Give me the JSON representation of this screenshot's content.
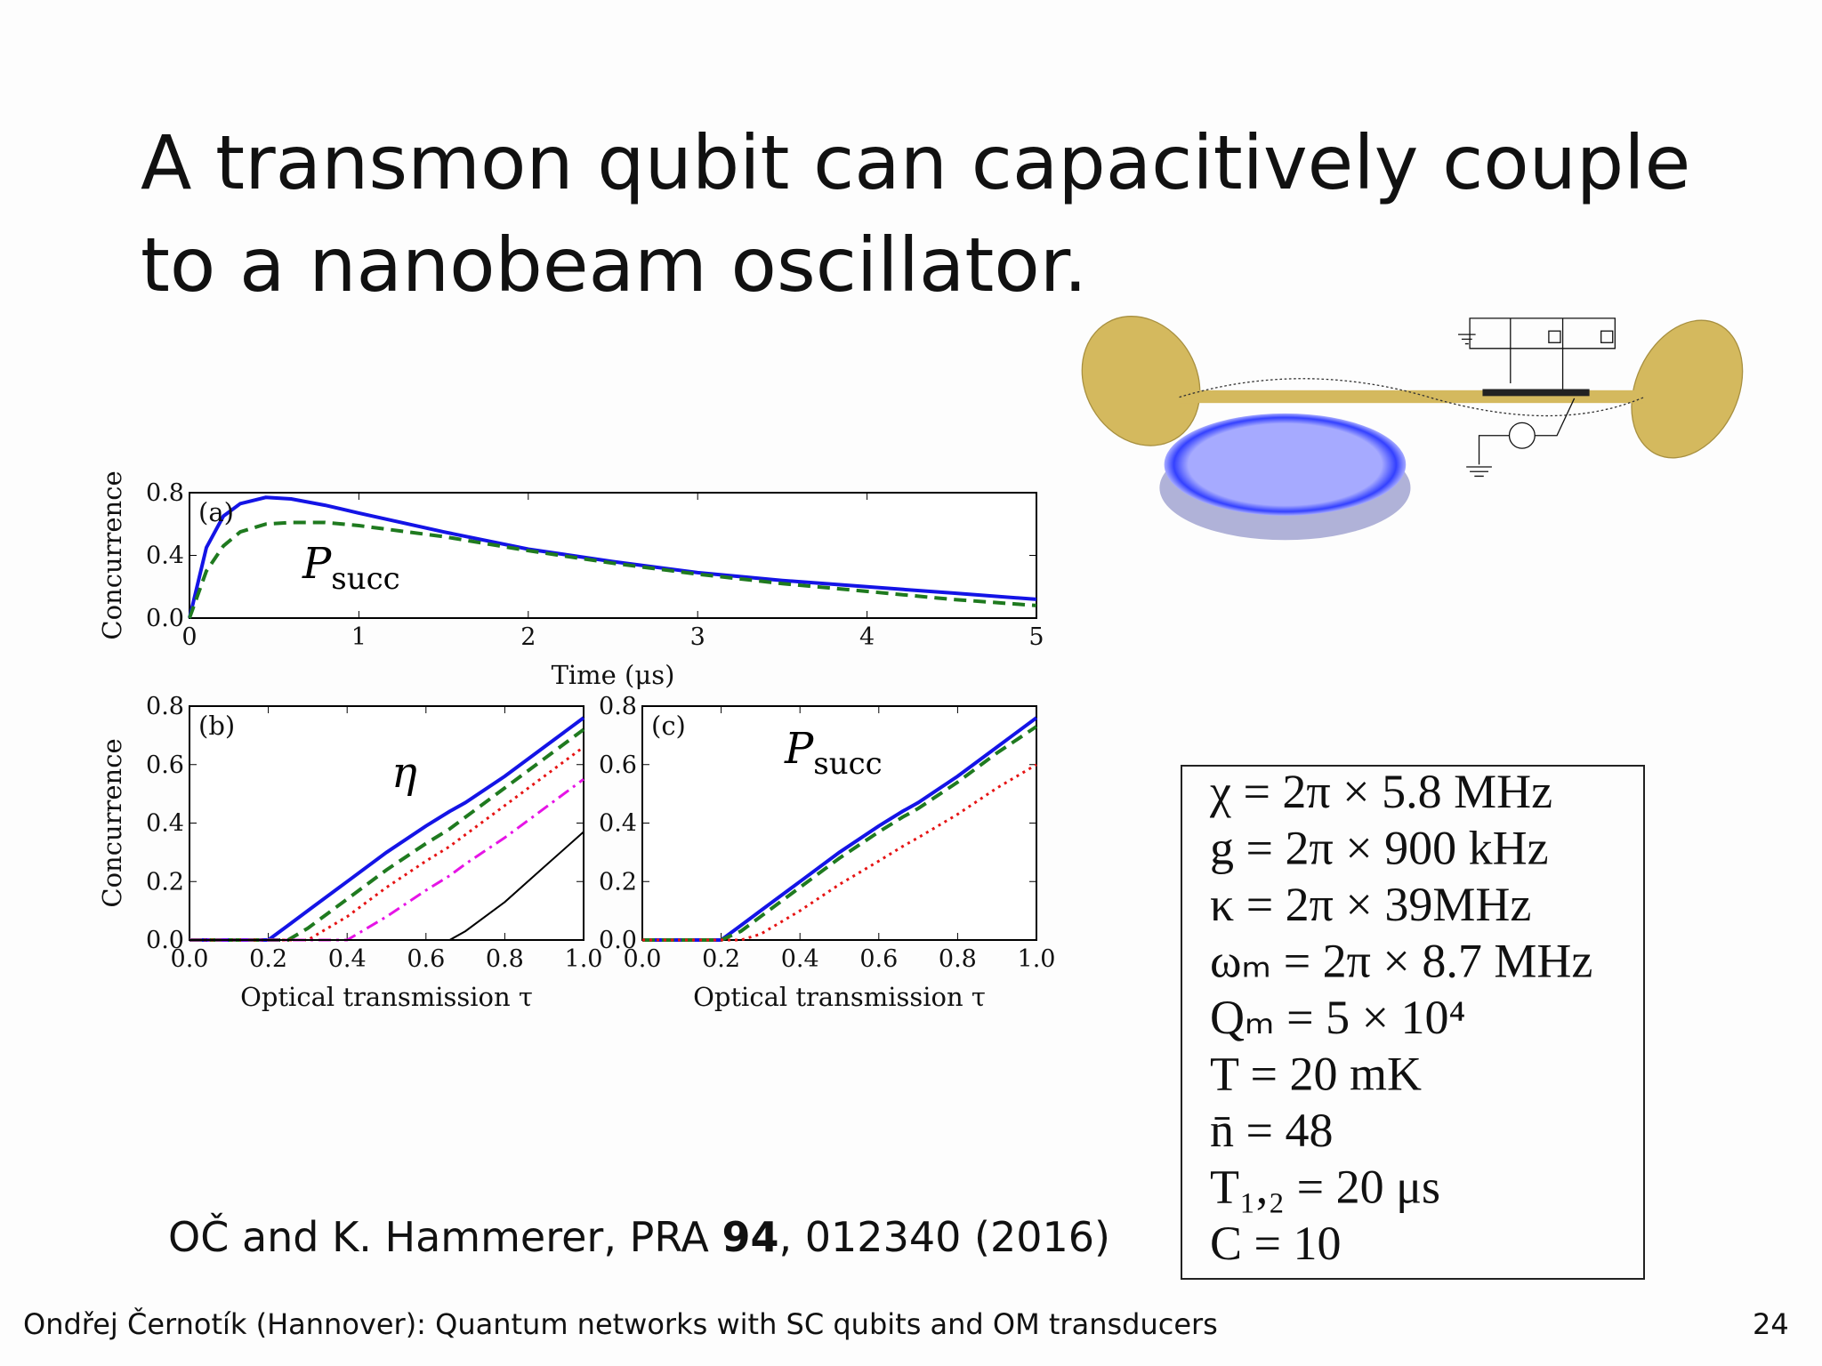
{
  "title_lines": [
    "A transmon qubit can capacitively couple",
    "to a nanobeam oscillator."
  ],
  "chart_data": [
    {
      "type": "line",
      "panel_label": "(a)",
      "xlabel": "Time (μs)",
      "ylabel": "Concurrence",
      "annotation": {
        "text": "P",
        "subscript": "succ"
      },
      "x": [
        0,
        0.1,
        0.2,
        0.3,
        0.45,
        0.6,
        0.8,
        1,
        1.5,
        2,
        2.5,
        3,
        3.5,
        4,
        4.5,
        5
      ],
      "series": [
        {
          "color": "#1414e6",
          "style": "solid",
          "values": [
            0,
            0.45,
            0.65,
            0.73,
            0.77,
            0.76,
            0.72,
            0.67,
            0.55,
            0.44,
            0.36,
            0.29,
            0.24,
            0.2,
            0.16,
            0.12
          ]
        },
        {
          "color": "#1f7a1f",
          "style": "dashed",
          "values": [
            0,
            0.3,
            0.46,
            0.55,
            0.6,
            0.61,
            0.61,
            0.59,
            0.52,
            0.43,
            0.35,
            0.28,
            0.22,
            0.17,
            0.12,
            0.08
          ]
        }
      ],
      "xlim": [
        0,
        5
      ],
      "ylim": [
        0,
        0.8
      ],
      "xticks": [
        0,
        1,
        2,
        3,
        4,
        5
      ],
      "yticks": [
        {
          "value": 0,
          "label": "0.0"
        },
        {
          "value": 0.4,
          "label": "0.4"
        },
        {
          "value": 0.8,
          "label": "0.8"
        }
      ]
    },
    {
      "type": "line",
      "panel_label": "(b)",
      "xlabel": "Optical transmission τ",
      "ylabel": "Concurrence",
      "annotation": {
        "text": "η"
      },
      "x": [
        0,
        0.1,
        0.2,
        0.25,
        0.3,
        0.4,
        0.5,
        0.6,
        0.66,
        0.7,
        0.8,
        0.9,
        1.0
      ],
      "series": [
        {
          "color": "#1414e6",
          "style": "solid",
          "values": [
            0,
            0,
            0,
            0.05,
            0.1,
            0.2,
            0.3,
            0.39,
            0.44,
            0.47,
            0.56,
            0.66,
            0.76
          ]
        },
        {
          "color": "#1f7a1f",
          "style": "dashed",
          "values": [
            0,
            0,
            0,
            0,
            0.04,
            0.14,
            0.24,
            0.33,
            0.38,
            0.42,
            0.52,
            0.62,
            0.72
          ]
        },
        {
          "color": "#e61414",
          "style": "dotted",
          "values": [
            0,
            0,
            0,
            0,
            0,
            0.08,
            0.18,
            0.27,
            0.32,
            0.36,
            0.46,
            0.56,
            0.66
          ]
        },
        {
          "color": "#e614e6",
          "style": "dashdot",
          "values": [
            0,
            0,
            0,
            0,
            0,
            0,
            0.08,
            0.17,
            0.22,
            0.26,
            0.35,
            0.45,
            0.55
          ]
        },
        {
          "color": "#000000",
          "style": "thin",
          "values": [
            0,
            0,
            0,
            0,
            0,
            0,
            0,
            0,
            0,
            0.03,
            0.13,
            0.25,
            0.37
          ]
        }
      ],
      "xlim": [
        0,
        1
      ],
      "ylim": [
        0,
        0.8
      ],
      "xticks": [
        {
          "value": 0,
          "label": "0.0"
        },
        {
          "value": 0.2,
          "label": "0.2"
        },
        {
          "value": 0.4,
          "label": "0.4"
        },
        {
          "value": 0.6,
          "label": "0.6"
        },
        {
          "value": 0.8,
          "label": "0.8"
        },
        {
          "value": 1,
          "label": "1.0"
        }
      ],
      "yticks": [
        {
          "value": 0,
          "label": "0.0"
        },
        {
          "value": 0.2,
          "label": "0.2"
        },
        {
          "value": 0.4,
          "label": "0.4"
        },
        {
          "value": 0.6,
          "label": "0.6"
        },
        {
          "value": 0.8,
          "label": "0.8"
        }
      ]
    },
    {
      "type": "line",
      "panel_label": "(c)",
      "xlabel": "Optical transmission τ",
      "annotation": {
        "text": "P",
        "subscript": "succ"
      },
      "x": [
        0,
        0.1,
        0.2,
        0.25,
        0.3,
        0.4,
        0.5,
        0.6,
        0.66,
        0.7,
        0.8,
        0.9,
        1.0
      ],
      "series": [
        {
          "color": "#1414e6",
          "style": "solid",
          "values": [
            0,
            0,
            0,
            0.05,
            0.1,
            0.2,
            0.3,
            0.39,
            0.44,
            0.47,
            0.56,
            0.66,
            0.76
          ]
        },
        {
          "color": "#1f7a1f",
          "style": "dashed",
          "values": [
            0,
            0,
            0,
            0.03,
            0.08,
            0.18,
            0.28,
            0.37,
            0.42,
            0.45,
            0.54,
            0.64,
            0.73
          ]
        },
        {
          "color": "#e61414",
          "style": "dotted",
          "values": [
            0,
            0,
            0,
            0,
            0.02,
            0.1,
            0.19,
            0.27,
            0.32,
            0.35,
            0.43,
            0.52,
            0.6
          ]
        }
      ],
      "xlim": [
        0,
        1
      ],
      "ylim": [
        0,
        0.8
      ],
      "xticks": [
        {
          "value": 0,
          "label": "0.0"
        },
        {
          "value": 0.2,
          "label": "0.2"
        },
        {
          "value": 0.4,
          "label": "0.4"
        },
        {
          "value": 0.6,
          "label": "0.6"
        },
        {
          "value": 0.8,
          "label": "0.8"
        },
        {
          "value": 1,
          "label": "1.0"
        }
      ],
      "yticks": [
        {
          "value": 0,
          "label": "0.0"
        },
        {
          "value": 0.2,
          "label": "0.2"
        },
        {
          "value": 0.4,
          "label": "0.4"
        },
        {
          "value": 0.6,
          "label": "0.6"
        },
        {
          "value": 0.8,
          "label": "0.8"
        }
      ]
    }
  ],
  "parameters": [
    "χ = 2π × 5.8 MHz",
    "g = 2π × 900 kHz",
    "κ = 2π × 39MHz",
    "ωₘ = 2π × 8.7 MHz",
    "Qₘ = 5 × 10⁴",
    "T = 20 mK",
    "n̄ = 48",
    "T₁,₂ = 20 μs",
    "C = 10"
  ],
  "citation": {
    "authors": "OČ and K. Hammerer, PRA ",
    "volume": "94",
    "rest": ", 012340 (2016)"
  },
  "footer": {
    "text": "Ondřej Černotík (Hannover): Quantum networks with SC qubits and OM transducers",
    "page": "24"
  }
}
